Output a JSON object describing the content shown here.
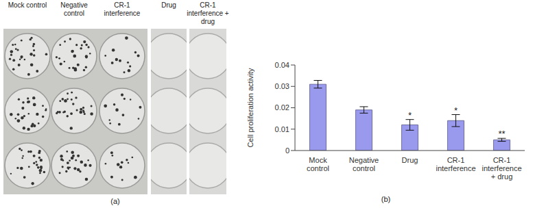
{
  "chart_data": {
    "type": "bar",
    "title": "(b)",
    "y_label": "Cell proliferation activity",
    "categories": [
      "Mock control",
      "Negative control",
      "Drug",
      "CR-1 interference",
      "CR-1 interference + drug"
    ],
    "values": [
      0.031,
      0.019,
      0.012,
      0.014,
      0.005
    ],
    "errors": [
      0.0018,
      0.0015,
      0.0025,
      0.0028,
      0.0007
    ],
    "significance": [
      null,
      null,
      "*",
      "*",
      "**"
    ],
    "color": "#9999ee",
    "ylim": [
      0,
      0.04
    ],
    "yticks": [
      0,
      0.01,
      0.02,
      0.03,
      0.04
    ],
    "grid": false
  },
  "panel_a": {
    "title": "(a)",
    "columns": [
      "Mock control",
      "Negative control",
      "CR-1 interference",
      "Drug",
      "CR-1 interference + drug"
    ]
  }
}
